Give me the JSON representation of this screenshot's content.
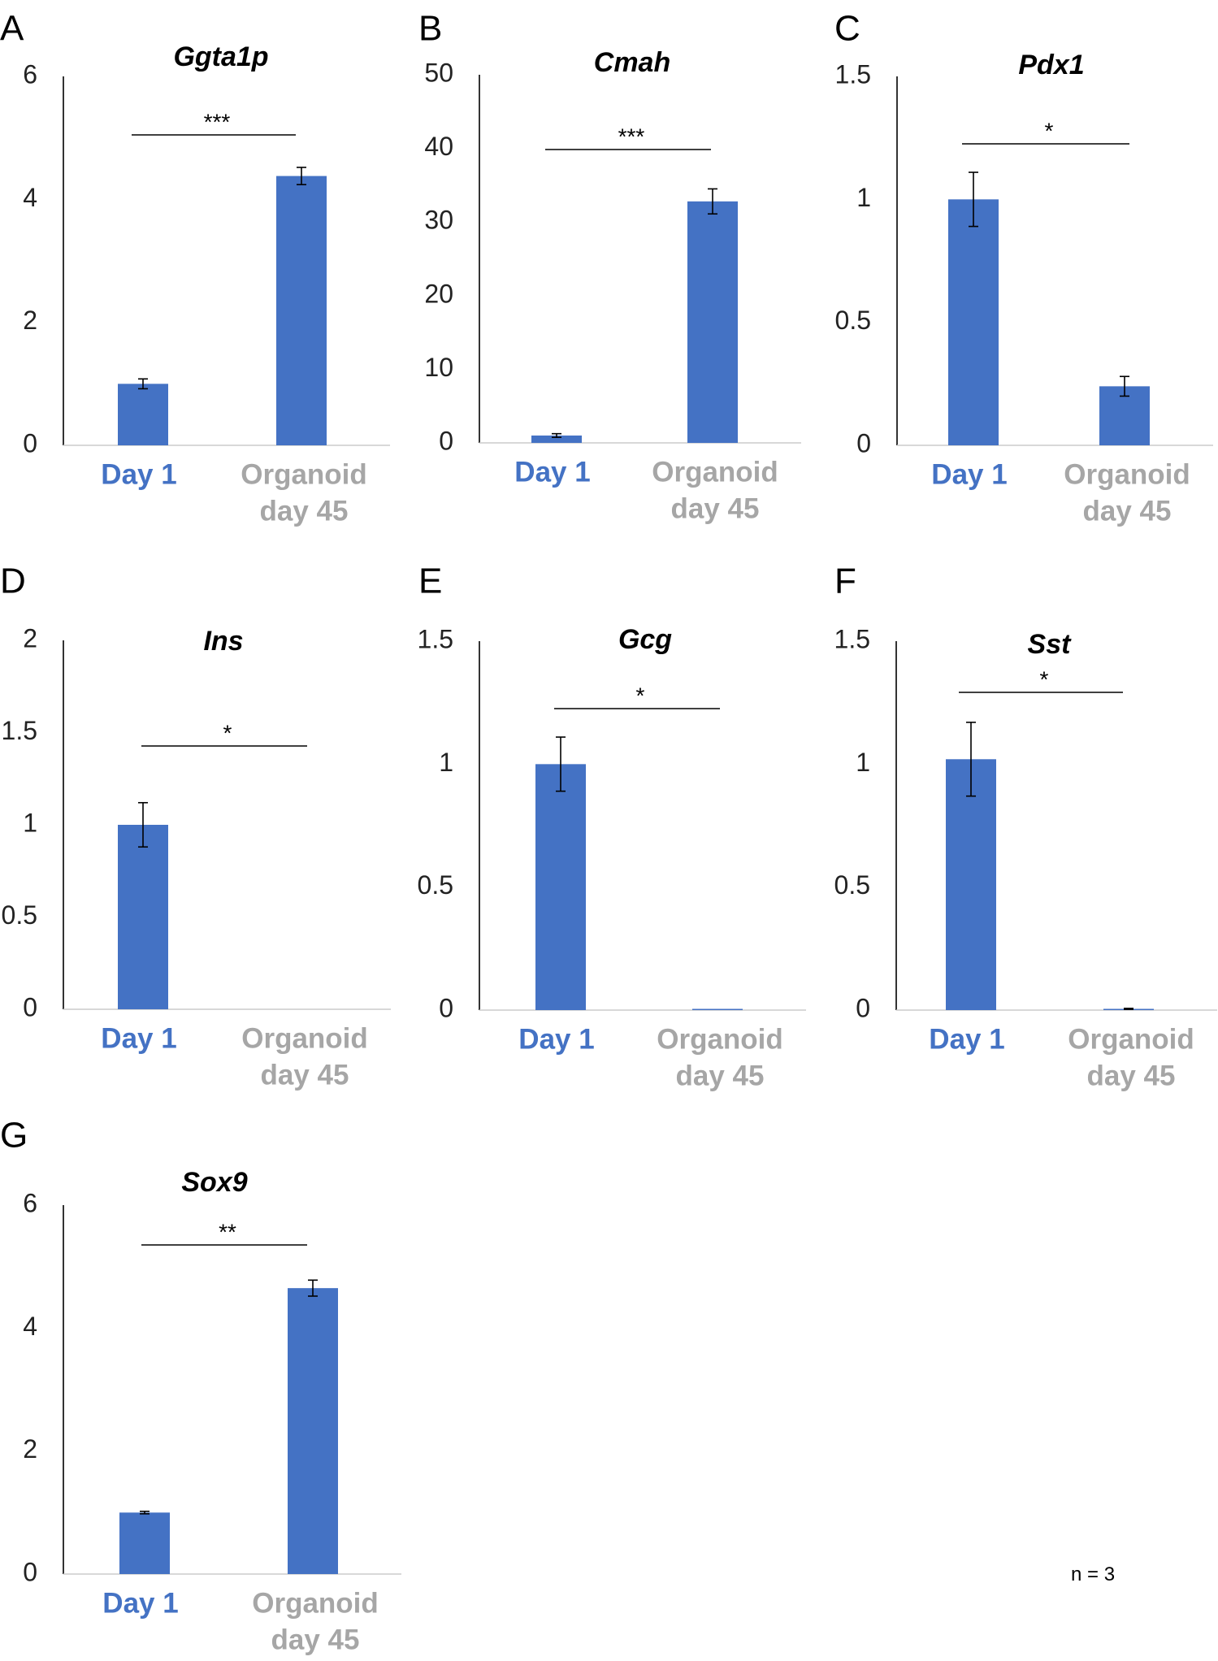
{
  "colors": {
    "bar": "#4472C4",
    "day1_label": "#4472C4",
    "organoid_label": "#A6A6A6",
    "axis": "#000000"
  },
  "footnote": "n = 3",
  "chart_data": [
    {
      "panel": "A",
      "title": "Ggta1p",
      "type": "bar",
      "categories": [
        "Day 1",
        "Organoid day 45"
      ],
      "category_lines": [
        [
          "Day 1"
        ],
        [
          "Organoid",
          "day 45"
        ]
      ],
      "values": [
        1.0,
        4.38
      ],
      "errors": [
        0.08,
        0.14
      ],
      "ylim": [
        0,
        6
      ],
      "yticks": [
        "0",
        "2",
        "4",
        "6"
      ],
      "ytick_values": [
        0,
        2,
        4,
        6
      ],
      "significance": "***"
    },
    {
      "panel": "B",
      "title": "Cmah",
      "type": "bar",
      "categories": [
        "Day 1",
        "Organoid day 45"
      ],
      "category_lines": [
        [
          "Day 1"
        ],
        [
          "Organoid",
          "day 45"
        ]
      ],
      "values": [
        1.0,
        32.8
      ],
      "errors": [
        0.25,
        1.7
      ],
      "ylim": [
        0,
        50
      ],
      "yticks": [
        "0",
        "10",
        "20",
        "30",
        "40",
        "50"
      ],
      "ytick_values": [
        0,
        10,
        20,
        30,
        40,
        50
      ],
      "significance": "***"
    },
    {
      "panel": "C",
      "title": "Pdx1",
      "type": "bar",
      "categories": [
        "Day 1",
        "Organoid day 45"
      ],
      "category_lines": [
        [
          "Day 1"
        ],
        [
          "Organoid",
          "day 45"
        ]
      ],
      "values": [
        1.0,
        0.24
      ],
      "errors": [
        0.11,
        0.04
      ],
      "ylim": [
        0,
        1.5
      ],
      "yticks": [
        "0",
        "0.5",
        "1",
        "1.5"
      ],
      "ytick_values": [
        0,
        0.5,
        1,
        1.5
      ],
      "significance": "*"
    },
    {
      "panel": "D",
      "title": "Ins",
      "type": "bar",
      "categories": [
        "Day 1",
        "Organoid day 45"
      ],
      "category_lines": [
        [
          "Day 1"
        ],
        [
          "Organoid",
          "day 45"
        ]
      ],
      "values": [
        1.0,
        0.0
      ],
      "errors": [
        0.12,
        0.0
      ],
      "ylim": [
        0,
        2
      ],
      "yticks": [
        "0",
        "0.5",
        "1",
        "1.5",
        "2"
      ],
      "ytick_values": [
        0,
        0.5,
        1,
        1.5,
        2
      ],
      "significance": "*"
    },
    {
      "panel": "E",
      "title": "Gcg",
      "type": "bar",
      "categories": [
        "Day 1",
        "Organoid day 45"
      ],
      "category_lines": [
        [
          "Day 1"
        ],
        [
          "Organoid",
          "day 45"
        ]
      ],
      "values": [
        1.0,
        0.002
      ],
      "errors": [
        0.11,
        0.0
      ],
      "ylim": [
        0,
        1.5
      ],
      "yticks": [
        "0",
        "0.5",
        "1",
        "1.5"
      ],
      "ytick_values": [
        0,
        0.5,
        1,
        1.5
      ],
      "significance": "*"
    },
    {
      "panel": "F",
      "title": "Sst",
      "type": "bar",
      "categories": [
        "Day 1",
        "Organoid day 45"
      ],
      "category_lines": [
        [
          "Day 1"
        ],
        [
          "Organoid",
          "day 45"
        ]
      ],
      "values": [
        1.02,
        0.005
      ],
      "errors": [
        0.15,
        0.002
      ],
      "ylim": [
        0,
        1.5
      ],
      "yticks": [
        "0",
        "0.5",
        "1",
        "1.5"
      ],
      "ytick_values": [
        0,
        0.5,
        1,
        1.5
      ],
      "significance": "*"
    },
    {
      "panel": "G",
      "title": "Sox9",
      "type": "bar",
      "categories": [
        "Day 1",
        "Organoid day 45"
      ],
      "category_lines": [
        [
          "Day 1"
        ],
        [
          "Organoid",
          "day 45"
        ]
      ],
      "values": [
        1.0,
        4.65
      ],
      "errors": [
        0.02,
        0.13
      ],
      "ylim": [
        0,
        6
      ],
      "yticks": [
        "0",
        "2",
        "4",
        "6"
      ],
      "ytick_values": [
        0,
        2,
        4,
        6
      ],
      "significance": "**"
    }
  ]
}
